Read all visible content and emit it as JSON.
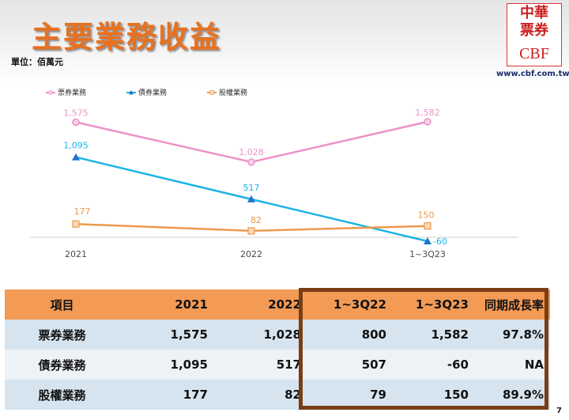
{
  "header": {
    "title": "主要業務收益",
    "unit": "單位：佰萬元",
    "logo_cn_line1": "中華",
    "logo_cn_line2": "票券",
    "logo_en": "CBF",
    "website": "www.cbf.com.tw"
  },
  "colors": {
    "bill": "#ec92c8",
    "bond": "#1cb3e6",
    "equity": "#ec9a4c",
    "header_orange": "#e8711f",
    "table_header": "#f39a55",
    "highlight_border": "#7a3e15"
  },
  "chart_data": {
    "type": "line",
    "categories": [
      "2021",
      "2022",
      "1~3Q23"
    ],
    "series": [
      {
        "name": "票券業務",
        "values": [
          1575,
          1028,
          1582
        ],
        "labels": [
          "1,575",
          "1,028",
          "1,582"
        ],
        "marker": "circle"
      },
      {
        "name": "債券業務",
        "values": [
          1095,
          517,
          -60
        ],
        "labels": [
          "1,095",
          "517",
          "-60"
        ],
        "marker": "triangle"
      },
      {
        "name": "股權業務",
        "values": [
          177,
          82,
          150
        ],
        "labels": [
          "177",
          "82",
          "150"
        ],
        "marker": "square"
      }
    ],
    "ylim": [
      -60,
      1700
    ],
    "legend": "top-left",
    "grid": false
  },
  "table": {
    "headers": [
      "項目",
      "2021",
      "2022",
      "1~3Q22",
      "1~3Q23",
      "同期成長率"
    ],
    "rows": [
      [
        "票券業務",
        "1,575",
        "1,028",
        "800",
        "1,582",
        "97.8%"
      ],
      [
        "債券業務",
        "1,095",
        "517",
        "507",
        "-60",
        "NA"
      ],
      [
        "股權業務",
        "177",
        "82",
        "79",
        "150",
        "89.9%"
      ]
    ]
  },
  "page_number": "7"
}
